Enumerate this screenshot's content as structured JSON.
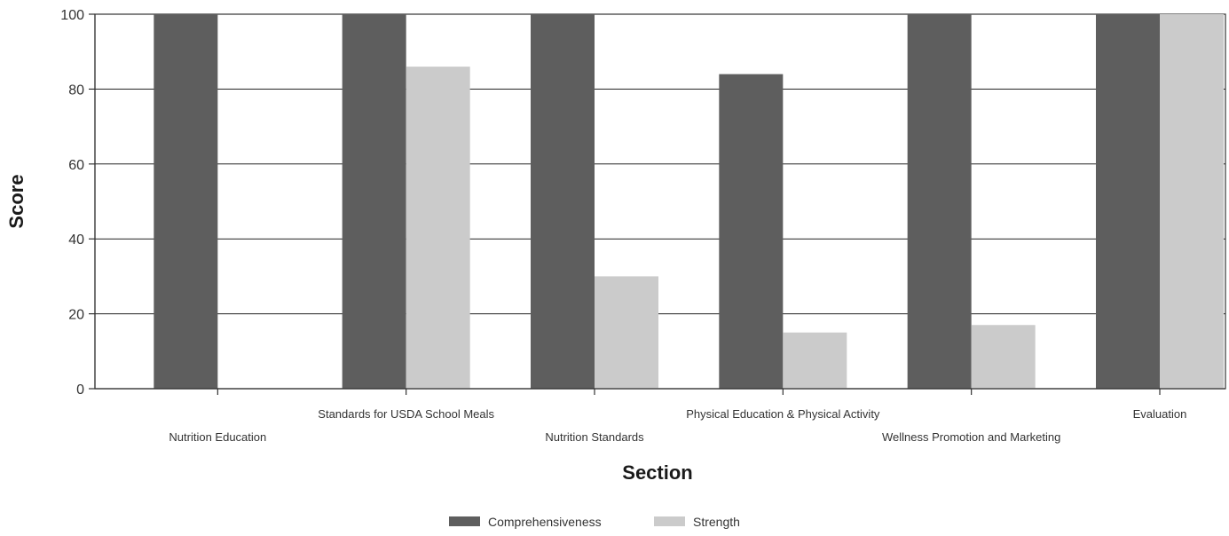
{
  "chart_data": {
    "type": "bar",
    "xlabel": "Section",
    "ylabel": "Score",
    "ylim": [
      0,
      100
    ],
    "yticks": [
      0,
      20,
      40,
      60,
      80,
      100
    ],
    "grid": true,
    "legend_position": "bottom",
    "categories": [
      "Nutrition Education",
      "Standards for USDA School Meals",
      "Nutrition Standards",
      "Physical Education & Physical Activity",
      "Wellness Promotion and Marketing",
      "Evaluation"
    ],
    "series": [
      {
        "name": "Comprehensiveness",
        "color": "#5e5e5e",
        "values": [
          100,
          100,
          100,
          84,
          100,
          100
        ]
      },
      {
        "name": "Strength",
        "color": "#cbcbcb",
        "values": [
          0,
          86,
          30,
          15,
          17,
          100
        ]
      }
    ]
  }
}
